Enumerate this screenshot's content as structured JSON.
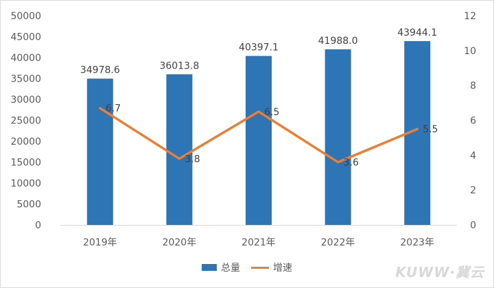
{
  "chart_data": {
    "type": "bar",
    "categories": [
      "2019年",
      "2020年",
      "2021年",
      "2022年",
      "2023年"
    ],
    "series": [
      {
        "name": "总量",
        "type": "bar",
        "axis": "left",
        "values": [
          34978.6,
          36013.8,
          40397.1,
          41988.0,
          43944.1
        ],
        "labels": [
          "34978.6",
          "36013.8",
          "40397.1",
          "41988.0",
          "43944.1"
        ],
        "color": "#2e75b6"
      },
      {
        "name": "增速",
        "type": "line",
        "axis": "right",
        "values": [
          6.7,
          3.8,
          6.5,
          3.6,
          5.5
        ],
        "labels": [
          "6.7",
          "3.8",
          "6.5",
          "3.6",
          "5.5"
        ],
        "color": "#ed7d31"
      }
    ],
    "y_left": {
      "range": [
        0,
        50000
      ],
      "ticks": [
        "0",
        "5000",
        "10000",
        "15000",
        "20000",
        "25000",
        "30000",
        "35000",
        "40000",
        "45000",
        "50000"
      ]
    },
    "y_right": {
      "range": [
        0,
        12
      ],
      "ticks": [
        "0",
        "2",
        "4",
        "6",
        "8",
        "10",
        "12"
      ]
    },
    "grid": false,
    "legend": "bottom-center",
    "title": "",
    "xlabel": "",
    "ylabel": ""
  },
  "watermark": "KUWW·冀云"
}
